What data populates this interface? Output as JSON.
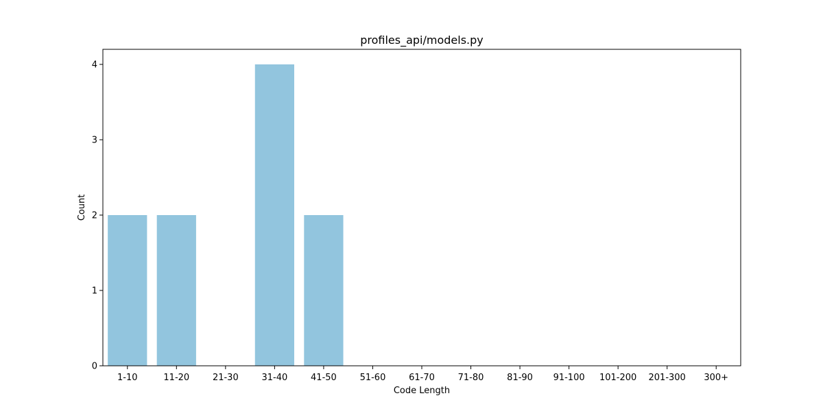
{
  "chart_data": {
    "type": "bar",
    "title": "profiles_api/models.py",
    "xlabel": "Code Length",
    "ylabel": "Count",
    "categories": [
      "1-10",
      "11-20",
      "21-30",
      "31-40",
      "41-50",
      "51-60",
      "61-70",
      "71-80",
      "81-90",
      "91-100",
      "101-200",
      "201-300",
      "300+"
    ],
    "values": [
      2,
      2,
      0,
      4,
      2,
      0,
      0,
      0,
      0,
      0,
      0,
      0,
      0
    ],
    "ylim": [
      0,
      4.2
    ],
    "yticks": [
      "0",
      "1",
      "2",
      "3",
      "4"
    ],
    "grid": false,
    "legend": "none",
    "bar_color": "#92c5de"
  }
}
